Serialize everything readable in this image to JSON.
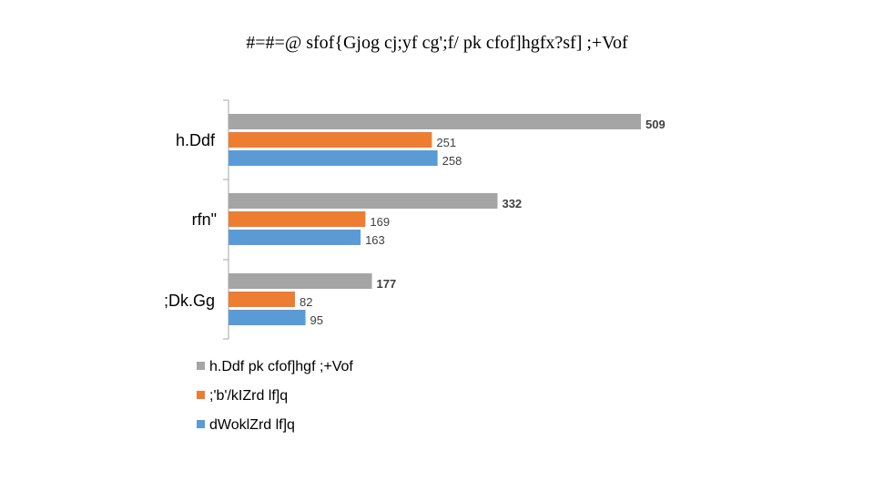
{
  "chart_data": {
    "type": "bar",
    "orientation": "horizontal",
    "title": "#=#=@ sfof{Gjog cj;yf cg';f/ pk cfof]hgfx?sf] ;+Vof",
    "categories": [
      "h.Ddf",
      "rfn\"",
      ";Dk.Gg"
    ],
    "series": [
      {
        "name": "h.Ddf pk cfof]hgf ;+Vof",
        "color": "#a5a5a5",
        "values": [
          509,
          332,
          177
        ]
      },
      {
        "name": ";'b'/kIZrd lf]q",
        "color": "#ed7d31",
        "values": [
          251,
          169,
          82
        ]
      },
      {
        "name": "dWoklZrd lf]q",
        "color": "#5b9bd5",
        "values": [
          258,
          163,
          95
        ]
      }
    ],
    "xlim": [
      0,
      509
    ],
    "grid": false,
    "legend": "bottom"
  }
}
